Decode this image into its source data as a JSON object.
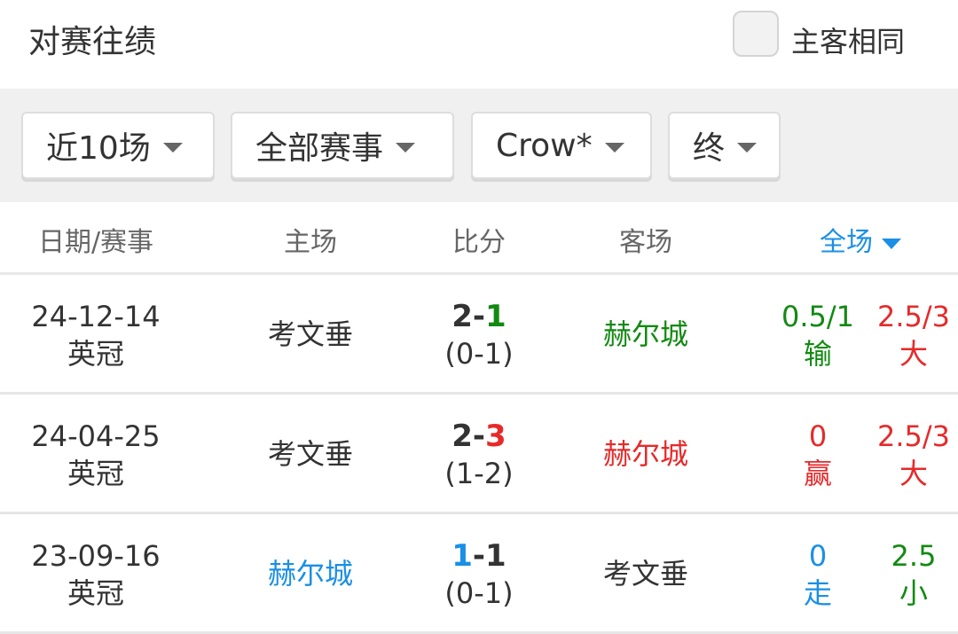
{
  "header": {
    "title": "对赛往绩",
    "same_host_label": "主客相同",
    "same_host_checked": false
  },
  "filters": [
    {
      "label": "近10场"
    },
    {
      "label": "全部赛事"
    },
    {
      "label": "Crow*"
    },
    {
      "label": "终"
    }
  ],
  "columns": {
    "date": "日期/赛事",
    "home": "主场",
    "score": "比分",
    "away": "客场",
    "full": "全场"
  },
  "colors": {
    "green": "#128a12",
    "red": "#e62a2a",
    "blue": "#1a8fe6",
    "text": "#333333"
  },
  "rows": [
    {
      "date": "24-12-14",
      "league": "英冠",
      "home": "考文垂",
      "score_home": "2",
      "score_sep": "-",
      "score_away": "1",
      "half": "(0-1)",
      "away": "赫尔城",
      "handicap": "0.5/1",
      "handicap_result": "输",
      "ou": "2.5/3",
      "ou_result": "大",
      "home_color": "text",
      "away_color": "green",
      "sh_color": "text",
      "sa_color": "green",
      "hc_color": "green",
      "ou_color": "red"
    },
    {
      "date": "24-04-25",
      "league": "英冠",
      "home": "考文垂",
      "score_home": "2",
      "score_sep": "-",
      "score_away": "3",
      "half": "(1-2)",
      "away": "赫尔城",
      "handicap": "0",
      "handicap_result": "赢",
      "ou": "2.5/3",
      "ou_result": "大",
      "home_color": "text",
      "away_color": "red",
      "sh_color": "text",
      "sa_color": "red",
      "hc_color": "red",
      "ou_color": "red"
    },
    {
      "date": "23-09-16",
      "league": "英冠",
      "home": "赫尔城",
      "score_home": "1",
      "score_sep": "-",
      "score_away": "1",
      "half": "(0-1)",
      "away": "考文垂",
      "handicap": "0",
      "handicap_result": "走",
      "ou": "2.5",
      "ou_result": "小",
      "home_color": "blue",
      "away_color": "text",
      "sh_color": "blue",
      "sa_color": "text",
      "hc_color": "blue",
      "ou_color": "green"
    }
  ]
}
